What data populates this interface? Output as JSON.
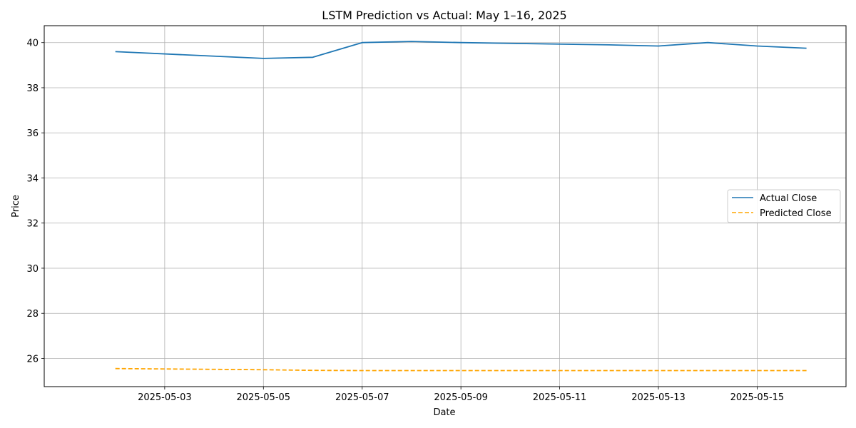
{
  "chart_data": {
    "type": "line",
    "title": "LSTM Prediction vs Actual: May 1–16, 2025",
    "xlabel": "Date",
    "ylabel": "Price",
    "x": [
      "2025-05-02",
      "2025-05-05",
      "2025-05-06",
      "2025-05-07",
      "2025-05-08",
      "2025-05-09",
      "2025-05-12",
      "2025-05-13",
      "2025-05-14",
      "2025-05-15",
      "2025-05-16"
    ],
    "series": [
      {
        "name": "Actual Close",
        "color": "#1f77b4",
        "style": "solid",
        "values": [
          39.6,
          39.3,
          39.35,
          40.0,
          40.05,
          40.0,
          39.9,
          39.85,
          40.0,
          39.85,
          39.75
        ]
      },
      {
        "name": "Predicted Close",
        "color": "#ffa500",
        "style": "dashed",
        "values": [
          25.55,
          25.5,
          25.47,
          25.46,
          25.46,
          25.46,
          25.46,
          25.46,
          25.46,
          25.46,
          25.46
        ]
      }
    ],
    "xlim": [
      "2025-05-01",
      "2025-05-16"
    ],
    "ylim": [
      24.75,
      40.75
    ],
    "x_ticks": [
      "2025-05-03",
      "2025-05-05",
      "2025-05-07",
      "2025-05-09",
      "2025-05-11",
      "2025-05-13",
      "2025-05-15"
    ],
    "y_ticks": [
      26,
      28,
      30,
      32,
      34,
      36,
      38,
      40
    ],
    "grid": true,
    "legend_position": "center-right"
  }
}
